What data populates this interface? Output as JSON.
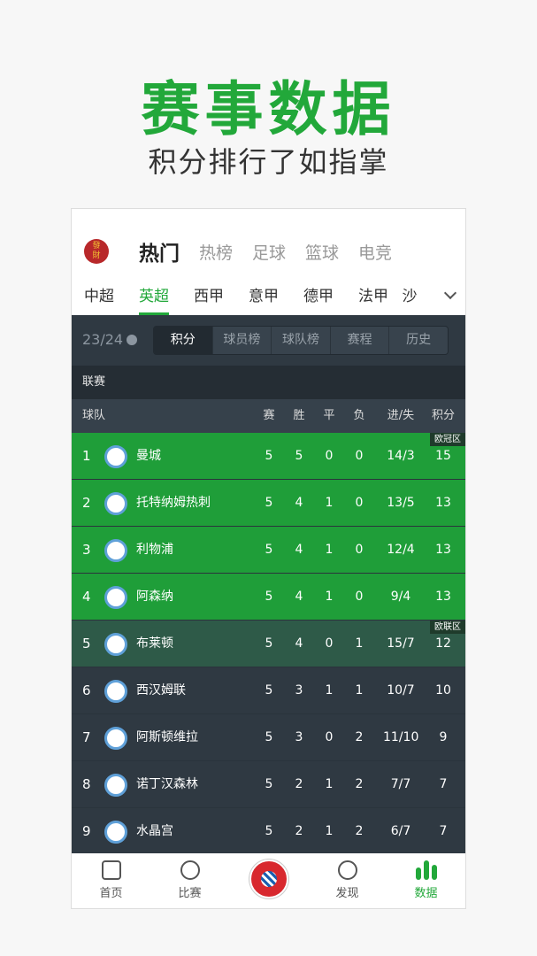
{
  "hero": {
    "title": "赛事数据",
    "subtitle": "积分排行了如指掌"
  },
  "app": {
    "logo_text": "發財",
    "top_tabs": [
      "热门",
      "热榜",
      "足球",
      "篮球",
      "电竞"
    ],
    "leagues": [
      "中超",
      "英超",
      "西甲",
      "意甲",
      "德甲",
      "法甲",
      "沙"
    ],
    "season": "23/24",
    "segments": [
      "积分",
      "球员榜",
      "球队榜",
      "赛程",
      "历史"
    ],
    "league_label": "联赛",
    "columns": [
      "球队",
      "赛",
      "胜",
      "平",
      "负",
      "进/失",
      "积分"
    ],
    "zone_tags": {
      "ucl": "欧冠区",
      "uel": "欧联区"
    },
    "rows": [
      {
        "rank": "1",
        "team": "曼城",
        "p": "5",
        "w": "5",
        "d": "0",
        "l": "0",
        "gd": "14/3",
        "pts": "15"
      },
      {
        "rank": "2",
        "team": "托特纳姆热刺",
        "p": "5",
        "w": "4",
        "d": "1",
        "l": "0",
        "gd": "13/5",
        "pts": "13"
      },
      {
        "rank": "3",
        "team": "利物浦",
        "p": "5",
        "w": "4",
        "d": "1",
        "l": "0",
        "gd": "12/4",
        "pts": "13"
      },
      {
        "rank": "4",
        "team": "阿森纳",
        "p": "5",
        "w": "4",
        "d": "1",
        "l": "0",
        "gd": "9/4",
        "pts": "13"
      },
      {
        "rank": "5",
        "team": "布莱顿",
        "p": "5",
        "w": "4",
        "d": "0",
        "l": "1",
        "gd": "15/7",
        "pts": "12"
      },
      {
        "rank": "6",
        "team": "西汉姆联",
        "p": "5",
        "w": "3",
        "d": "1",
        "l": "1",
        "gd": "10/7",
        "pts": "10"
      },
      {
        "rank": "7",
        "team": "阿斯顿维拉",
        "p": "5",
        "w": "3",
        "d": "0",
        "l": "2",
        "gd": "11/10",
        "pts": "9"
      },
      {
        "rank": "8",
        "team": "诺丁汉森林",
        "p": "5",
        "w": "2",
        "d": "1",
        "l": "2",
        "gd": "7/7",
        "pts": "7"
      },
      {
        "rank": "9",
        "team": "水晶宫",
        "p": "5",
        "w": "2",
        "d": "1",
        "l": "2",
        "gd": "6/7",
        "pts": "7"
      }
    ],
    "nav": [
      "首页",
      "比赛",
      "发现",
      "数据"
    ],
    "colors": {
      "accent": "#22a83a",
      "ucl_row": "#1f9e39",
      "uel_row": "#2e5a48",
      "dark": "#2f3942"
    }
  }
}
